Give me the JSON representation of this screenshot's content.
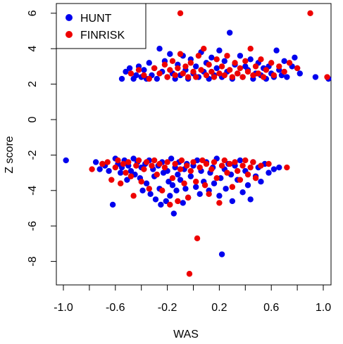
{
  "chart_data": {
    "type": "scatter",
    "xlabel": "WAS",
    "ylabel": "Z score",
    "xlim": [
      -1.0,
      1.0
    ],
    "ylim": [
      -9,
      6.2
    ],
    "x_ticks": [
      -1.0,
      -0.8,
      -0.6,
      -0.4,
      -0.2,
      0.0,
      0.2,
      0.4,
      0.6,
      0.8,
      1.0
    ],
    "x_tick_labels": [
      "-1.0",
      "",
      "-0.6",
      "",
      "-0.2",
      "",
      "0.2",
      "",
      "0.6",
      "",
      "1.0"
    ],
    "y_ticks": [
      -8,
      -6,
      -4,
      -2,
      0,
      2,
      4,
      6
    ],
    "y_tick_labels": [
      "-8",
      "-6",
      "-4",
      "-2",
      "0",
      "2",
      "4",
      "6"
    ],
    "legend_position": "top-left",
    "grid": false,
    "colors": {
      "HUNT": "#0000ee",
      "FINRISK": "#ee0000"
    },
    "series": [
      {
        "name": "HUNT",
        "color": "#0000ee",
        "points": [
          [
            -0.98,
            -2.3
          ],
          [
            -0.75,
            -2.4
          ],
          [
            -0.72,
            -2.8
          ],
          [
            -0.7,
            -2.5
          ],
          [
            -0.68,
            -2.6
          ],
          [
            -0.65,
            -2.9
          ],
          [
            -0.62,
            -4.8
          ],
          [
            -0.6,
            -2.2
          ],
          [
            -0.58,
            -2.5
          ],
          [
            -0.56,
            -3.0
          ],
          [
            -0.55,
            -2.7
          ],
          [
            -0.53,
            -2.3
          ],
          [
            -0.51,
            -3.4
          ],
          [
            -0.5,
            -2.6
          ],
          [
            -0.48,
            -2.9
          ],
          [
            -0.46,
            -2.2
          ],
          [
            -0.45,
            -3.1
          ],
          [
            -0.43,
            -2.4
          ],
          [
            -0.41,
            -3.3
          ],
          [
            -0.4,
            -2.7
          ],
          [
            -0.39,
            -4.0
          ],
          [
            -0.37,
            -2.5
          ],
          [
            -0.36,
            -3.6
          ],
          [
            -0.34,
            -2.3
          ],
          [
            -0.33,
            -4.2
          ],
          [
            -0.31,
            -2.8
          ],
          [
            -0.3,
            -3.2
          ],
          [
            -0.29,
            -4.5
          ],
          [
            -0.27,
            -2.6
          ],
          [
            -0.26,
            -3.9
          ],
          [
            -0.25,
            -4.8
          ],
          [
            -0.24,
            -2.4
          ],
          [
            -0.23,
            -3.0
          ],
          [
            -0.21,
            -4.6
          ],
          [
            -0.2,
            -2.9
          ],
          [
            -0.19,
            -3.5
          ],
          [
            -0.18,
            -4.3
          ],
          [
            -0.17,
            -2.2
          ],
          [
            -0.16,
            -3.7
          ],
          [
            -0.15,
            -5.3
          ],
          [
            -0.14,
            -2.7
          ],
          [
            -0.13,
            -4.0
          ],
          [
            -0.12,
            -3.1
          ],
          [
            -0.11,
            -2.4
          ],
          [
            -0.1,
            -3.4
          ],
          [
            -0.08,
            -4.7
          ],
          [
            -0.07,
            -2.8
          ],
          [
            -0.06,
            -3.9
          ],
          [
            -0.05,
            -2.5
          ],
          [
            -0.04,
            -4.4
          ],
          [
            -0.02,
            -3.2
          ],
          [
            0.0,
            -2.6
          ],
          [
            0.02,
            -3.8
          ],
          [
            0.03,
            -2.3
          ],
          [
            0.05,
            -4.2
          ],
          [
            0.06,
            -2.9
          ],
          [
            0.08,
            -3.5
          ],
          [
            0.1,
            -2.4
          ],
          [
            0.12,
            -4.0
          ],
          [
            0.13,
            -3.0
          ],
          [
            0.15,
            -2.7
          ],
          [
            0.16,
            -3.6
          ],
          [
            0.18,
            -2.2
          ],
          [
            0.2,
            -4.3
          ],
          [
            0.21,
            -3.3
          ],
          [
            0.22,
            -7.6
          ],
          [
            0.24,
            -2.8
          ],
          [
            0.25,
            -3.9
          ],
          [
            0.27,
            -2.5
          ],
          [
            0.29,
            -3.1
          ],
          [
            0.3,
            -4.6
          ],
          [
            0.32,
            -2.6
          ],
          [
            0.34,
            -3.4
          ],
          [
            0.36,
            -2.3
          ],
          [
            0.38,
            -4.1
          ],
          [
            0.4,
            -2.9
          ],
          [
            0.42,
            -3.7
          ],
          [
            0.44,
            -4.5
          ],
          [
            0.46,
            -2.4
          ],
          [
            0.48,
            -3.2
          ],
          [
            0.5,
            -2.7
          ],
          [
            0.52,
            -3.5
          ],
          [
            0.55,
            -2.5
          ],
          [
            0.58,
            -3.0
          ],
          [
            0.62,
            -2.8
          ],
          [
            0.66,
            -2.7
          ],
          [
            -0.55,
            2.3
          ],
          [
            -0.52,
            2.7
          ],
          [
            -0.49,
            2.9
          ],
          [
            -0.46,
            2.3
          ],
          [
            -0.44,
            2.5
          ],
          [
            -0.42,
            3.0
          ],
          [
            -0.4,
            2.4
          ],
          [
            -0.38,
            2.8
          ],
          [
            -0.36,
            2.3
          ],
          [
            -0.34,
            3.2
          ],
          [
            -0.32,
            2.5
          ],
          [
            -0.3,
            2.9
          ],
          [
            -0.28,
            2.3
          ],
          [
            -0.26,
            4.0
          ],
          [
            -0.24,
            2.7
          ],
          [
            -0.22,
            3.3
          ],
          [
            -0.2,
            2.4
          ],
          [
            -0.18,
            3.7
          ],
          [
            -0.16,
            2.6
          ],
          [
            -0.14,
            2.3
          ],
          [
            -0.12,
            3.1
          ],
          [
            -0.1,
            2.5
          ],
          [
            -0.08,
            3.6
          ],
          [
            -0.06,
            2.8
          ],
          [
            -0.04,
            2.3
          ],
          [
            -0.02,
            3.4
          ],
          [
            0.0,
            2.6
          ],
          [
            0.02,
            3.0
          ],
          [
            0.04,
            2.4
          ],
          [
            0.06,
            3.8
          ],
          [
            0.08,
            2.7
          ],
          [
            0.1,
            3.2
          ],
          [
            0.12,
            2.3
          ],
          [
            0.14,
            3.5
          ],
          [
            0.16,
            2.5
          ],
          [
            0.18,
            2.9
          ],
          [
            0.2,
            3.9
          ],
          [
            0.22,
            2.4
          ],
          [
            0.24,
            3.3
          ],
          [
            0.26,
            2.7
          ],
          [
            0.28,
            4.9
          ],
          [
            0.3,
            2.3
          ],
          [
            0.32,
            3.1
          ],
          [
            0.34,
            2.6
          ],
          [
            0.36,
            3.6
          ],
          [
            0.38,
            2.4
          ],
          [
            0.4,
            3.0
          ],
          [
            0.42,
            2.8
          ],
          [
            0.44,
            3.4
          ],
          [
            0.46,
            2.3
          ],
          [
            0.48,
            2.6
          ],
          [
            0.5,
            3.2
          ],
          [
            0.52,
            2.5
          ],
          [
            0.54,
            2.9
          ],
          [
            0.56,
            2.3
          ],
          [
            0.58,
            3.0
          ],
          [
            0.6,
            2.6
          ],
          [
            0.62,
            2.4
          ],
          [
            0.64,
            3.9
          ],
          [
            0.66,
            2.8
          ],
          [
            0.68,
            2.5
          ],
          [
            0.7,
            3.3
          ],
          [
            0.72,
            2.4
          ],
          [
            0.76,
            3.0
          ],
          [
            0.78,
            3.5
          ],
          [
            0.8,
            2.9
          ],
          [
            0.82,
            2.6
          ],
          [
            0.94,
            2.4
          ],
          [
            1.04,
            2.3
          ]
        ]
      },
      {
        "name": "FINRISK",
        "color": "#ee0000",
        "points": [
          [
            -0.78,
            -2.8
          ],
          [
            -0.7,
            -2.5
          ],
          [
            -0.66,
            -2.4
          ],
          [
            -0.63,
            -3.4
          ],
          [
            -0.6,
            -2.7
          ],
          [
            -0.58,
            -2.3
          ],
          [
            -0.56,
            -3.6
          ],
          [
            -0.54,
            -2.5
          ],
          [
            -0.52,
            -3.0
          ],
          [
            -0.5,
            -2.4
          ],
          [
            -0.48,
            -3.2
          ],
          [
            -0.46,
            -4.3
          ],
          [
            -0.44,
            -2.6
          ],
          [
            -0.42,
            -2.3
          ],
          [
            -0.4,
            -3.5
          ],
          [
            -0.38,
            -2.8
          ],
          [
            -0.36,
            -2.4
          ],
          [
            -0.34,
            -3.9
          ],
          [
            -0.32,
            -2.6
          ],
          [
            -0.3,
            -2.3
          ],
          [
            -0.28,
            -3.1
          ],
          [
            -0.26,
            -2.5
          ],
          [
            -0.24,
            -4.0
          ],
          [
            -0.22,
            -2.7
          ],
          [
            -0.2,
            -2.4
          ],
          [
            -0.18,
            -4.8
          ],
          [
            -0.16,
            -3.3
          ],
          [
            -0.14,
            -2.5
          ],
          [
            -0.12,
            -4.6
          ],
          [
            -0.1,
            -2.8
          ],
          [
            -0.09,
            -2.3
          ],
          [
            -0.07,
            -3.6
          ],
          [
            -0.05,
            -2.6
          ],
          [
            -0.04,
            -4.4
          ],
          [
            -0.03,
            -8.7
          ],
          [
            -0.02,
            -2.9
          ],
          [
            0.0,
            -2.4
          ],
          [
            0.02,
            -3.5
          ],
          [
            0.03,
            -6.7
          ],
          [
            0.05,
            -2.7
          ],
          [
            0.07,
            -2.3
          ],
          [
            0.09,
            -3.7
          ],
          [
            0.1,
            -2.5
          ],
          [
            0.12,
            -4.2
          ],
          [
            0.14,
            -2.8
          ],
          [
            0.16,
            -2.4
          ],
          [
            0.18,
            -3.3
          ],
          [
            0.2,
            -4.7
          ],
          [
            0.22,
            -2.6
          ],
          [
            0.24,
            -2.3
          ],
          [
            0.26,
            -3.0
          ],
          [
            0.28,
            -2.5
          ],
          [
            0.3,
            -3.8
          ],
          [
            0.32,
            -2.4
          ],
          [
            0.34,
            -2.9
          ],
          [
            0.36,
            -3.4
          ],
          [
            0.38,
            -2.6
          ],
          [
            0.4,
            -2.3
          ],
          [
            0.42,
            -3.1
          ],
          [
            0.44,
            -2.7
          ],
          [
            0.46,
            -2.4
          ],
          [
            0.48,
            -3.3
          ],
          [
            0.52,
            -2.6
          ],
          [
            0.58,
            -2.5
          ],
          [
            0.72,
            -2.7
          ],
          [
            -0.48,
            2.6
          ],
          [
            -0.42,
            2.8
          ],
          [
            -0.38,
            2.5
          ],
          [
            -0.34,
            2.3
          ],
          [
            -0.3,
            2.9
          ],
          [
            -0.26,
            2.6
          ],
          [
            -0.22,
            3.1
          ],
          [
            -0.2,
            2.4
          ],
          [
            -0.18,
            2.8
          ],
          [
            -0.16,
            3.3
          ],
          [
            -0.14,
            2.5
          ],
          [
            -0.12,
            2.9
          ],
          [
            -0.1,
            6.0
          ],
          [
            -0.1,
            3.7
          ],
          [
            -0.08,
            2.6
          ],
          [
            -0.06,
            3.0
          ],
          [
            -0.04,
            2.4
          ],
          [
            -0.02,
            3.2
          ],
          [
            0.0,
            2.7
          ],
          [
            0.02,
            2.4
          ],
          [
            0.04,
            3.6
          ],
          [
            0.06,
            2.8
          ],
          [
            0.08,
            4.0
          ],
          [
            0.1,
            2.5
          ],
          [
            0.12,
            3.1
          ],
          [
            0.14,
            2.7
          ],
          [
            0.16,
            2.4
          ],
          [
            0.18,
            3.4
          ],
          [
            0.2,
            2.6
          ],
          [
            0.22,
            3.0
          ],
          [
            0.24,
            2.5
          ],
          [
            0.26,
            3.6
          ],
          [
            0.28,
            2.8
          ],
          [
            0.3,
            2.4
          ],
          [
            0.32,
            3.2
          ],
          [
            0.34,
            2.6
          ],
          [
            0.36,
            2.9
          ],
          [
            0.38,
            2.4
          ],
          [
            0.4,
            3.3
          ],
          [
            0.42,
            2.7
          ],
          [
            0.44,
            4.0
          ],
          [
            0.46,
            2.5
          ],
          [
            0.48,
            3.0
          ],
          [
            0.5,
            2.6
          ],
          [
            0.52,
            3.4
          ],
          [
            0.54,
            2.4
          ],
          [
            0.56,
            2.8
          ],
          [
            0.6,
            3.2
          ],
          [
            0.62,
            2.5
          ],
          [
            0.66,
            3.0
          ],
          [
            0.7,
            2.7
          ],
          [
            0.74,
            3.2
          ],
          [
            0.8,
            2.9
          ],
          [
            0.9,
            6.0
          ],
          [
            1.03,
            2.4
          ]
        ]
      }
    ]
  }
}
